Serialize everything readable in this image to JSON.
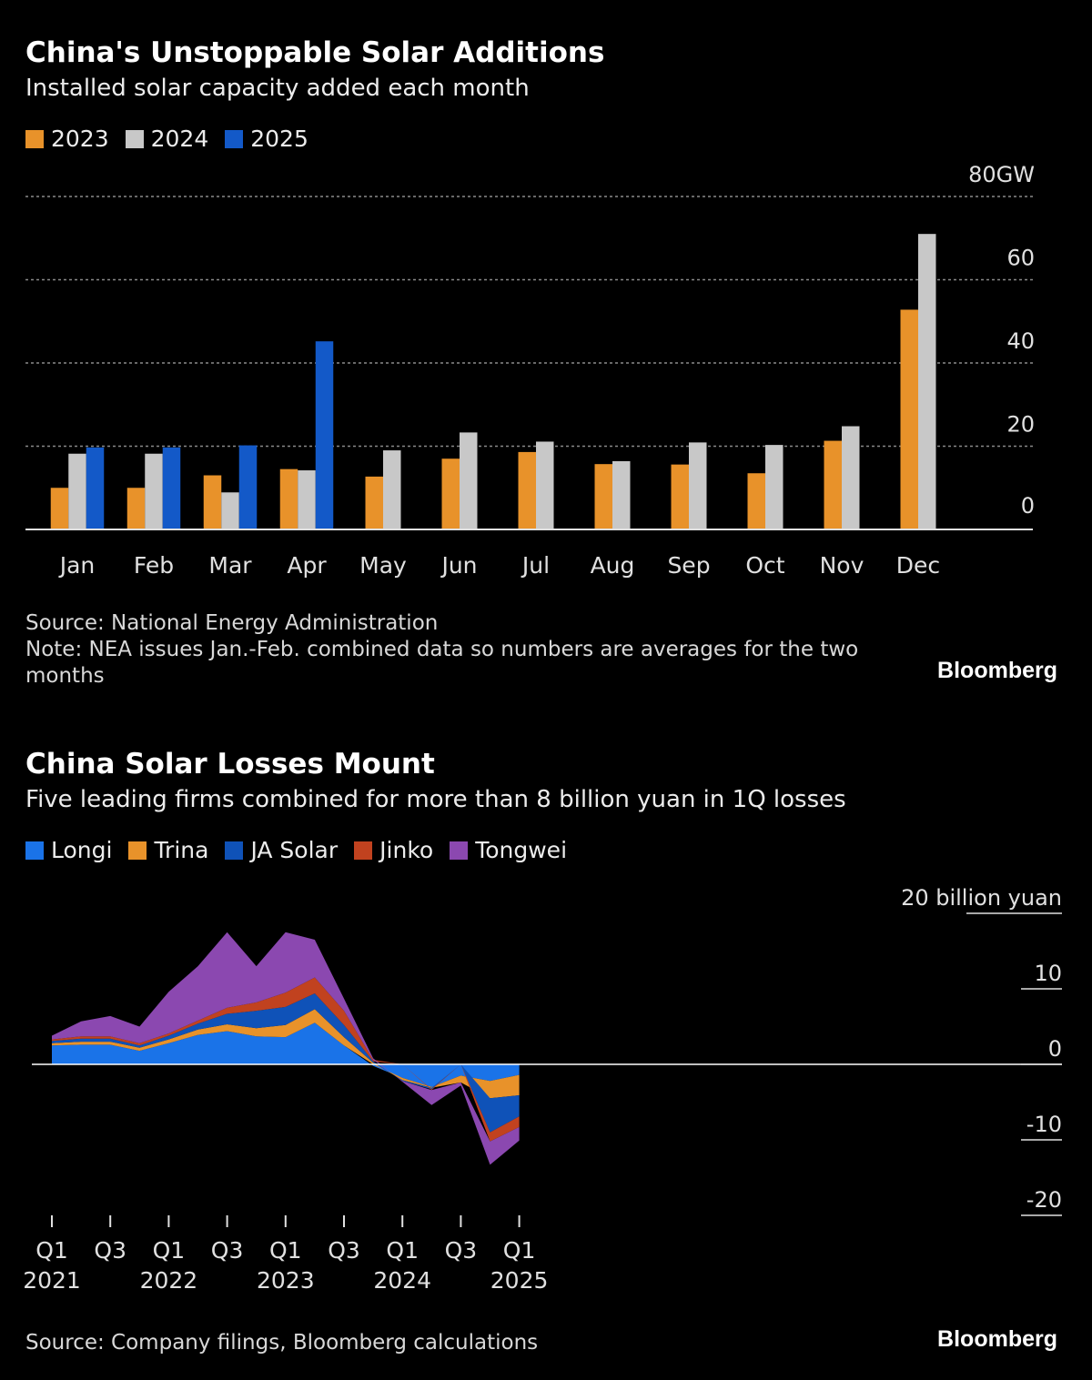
{
  "charts": [
    {
      "title": "China's Unstoppable Solar Additions",
      "subtitle": "Installed solar capacity added each month",
      "source": "Source: National Energy Administration",
      "note": "Note: NEA issues Jan.-Feb. combined data so numbers are averages for the two months",
      "brand": "Bloomberg"
    },
    {
      "title": "China Solar Losses Mount",
      "subtitle": "Five leading firms combined for more than 8 billion yuan in 1Q losses",
      "source": "Source: Company filings, Bloomberg calculations",
      "brand": "Bloomberg"
    }
  ],
  "chart_data": [
    {
      "type": "bar",
      "categories": [
        "Jan",
        "Feb",
        "Mar",
        "Apr",
        "May",
        "Jun",
        "Jul",
        "Aug",
        "Sep",
        "Oct",
        "Nov",
        "Dec"
      ],
      "series": [
        {
          "name": "2023",
          "color": "#e8922a",
          "values": [
            10,
            10,
            13,
            14.5,
            12.7,
            17,
            18.6,
            15.7,
            15.6,
            13.5,
            21.3,
            52.8
          ]
        },
        {
          "name": "2024",
          "color": "#c8c8c8",
          "values": [
            18.2,
            18.2,
            8.9,
            14.2,
            19,
            23.3,
            21.1,
            16.4,
            20.9,
            20.3,
            24.8,
            71
          ]
        },
        {
          "name": "2025",
          "color": "#1359c8",
          "values": [
            19.7,
            19.7,
            20.2,
            45.2,
            null,
            null,
            null,
            null,
            null,
            null,
            null,
            null
          ]
        }
      ],
      "ylim": [
        0,
        80
      ],
      "yticks": [
        {
          "value": 0,
          "label": "0"
        },
        {
          "value": 20,
          "label": "20"
        },
        {
          "value": 40,
          "label": "40"
        },
        {
          "value": 60,
          "label": "60"
        },
        {
          "value": 80,
          "label": "80GW"
        }
      ],
      "grid": true,
      "legend_position": "top-left"
    },
    {
      "type": "area",
      "stacked": true,
      "x": [
        "Q1 2021",
        "Q2 2021",
        "Q3 2021",
        "Q4 2021",
        "Q1 2022",
        "Q2 2022",
        "Q3 2022",
        "Q4 2022",
        "Q1 2023",
        "Q2 2023",
        "Q3 2023",
        "Q4 2023",
        "Q1 2024",
        "Q2 2024",
        "Q3 2024",
        "Q4 2024",
        "Q1 2025"
      ],
      "series": [
        {
          "name": "Longi",
          "color": "#1a73e8",
          "values": [
            2.5,
            2.6,
            2.6,
            1.8,
            2.8,
            3.9,
            4.4,
            3.7,
            3.6,
            5.5,
            2.5,
            -0.2,
            -1.8,
            -3,
            -1.5,
            -2.2,
            -1.4
          ]
        },
        {
          "name": "Trina",
          "color": "#e8922a",
          "values": [
            0.3,
            0.4,
            0.4,
            0.4,
            0.5,
            0.7,
            0.9,
            1.1,
            1.6,
            1.8,
            1.1,
            0.2,
            -0.3,
            -0.1,
            -0.9,
            -2.3,
            -2.7
          ]
        },
        {
          "name": "JA Solar",
          "color": "#0f52b8",
          "values": [
            0.3,
            0.4,
            0.4,
            0.3,
            0.5,
            0.8,
            1.4,
            2.3,
            2.4,
            2.1,
            1.6,
            0.2,
            -0.1,
            -0.2,
            0,
            -4.5,
            -2.8
          ]
        },
        {
          "name": "Jinko",
          "color": "#c1421f",
          "values": [
            0.2,
            0.3,
            0.3,
            0.3,
            0.3,
            0.4,
            0.8,
            1.1,
            1.9,
            2.1,
            1.9,
            0.2,
            0,
            -0.1,
            0,
            -1.2,
            -1.4
          ]
        },
        {
          "name": "Tongwei",
          "color": "#8b48b0",
          "values": [
            0.5,
            2,
            2.7,
            2.2,
            5.5,
            7.2,
            10,
            4.8,
            8,
            5,
            1.6,
            0.2,
            -0.1,
            -2,
            -0.4,
            -3.1,
            -1.8
          ]
        }
      ],
      "ylim": [
        -20,
        20
      ],
      "yticks": [
        {
          "value": -20,
          "label": "-20"
        },
        {
          "value": -10,
          "label": "-10"
        },
        {
          "value": 0,
          "label": "0"
        },
        {
          "value": 10,
          "label": "10"
        },
        {
          "value": 20,
          "label": "20 billion yuan"
        }
      ],
      "xticks": [
        {
          "index": 0,
          "line1": "Q1",
          "line2": "2021"
        },
        {
          "index": 2,
          "line1": "Q3",
          "line2": ""
        },
        {
          "index": 4,
          "line1": "Q1",
          "line2": "2022"
        },
        {
          "index": 6,
          "line1": "Q3",
          "line2": ""
        },
        {
          "index": 8,
          "line1": "Q1",
          "line2": "2023"
        },
        {
          "index": 10,
          "line1": "Q3",
          "line2": ""
        },
        {
          "index": 12,
          "line1": "Q1",
          "line2": "2024"
        },
        {
          "index": 14,
          "line1": "Q3",
          "line2": ""
        },
        {
          "index": 16,
          "line1": "Q1",
          "line2": "2025"
        }
      ],
      "grid": false,
      "legend_position": "top-left"
    }
  ]
}
